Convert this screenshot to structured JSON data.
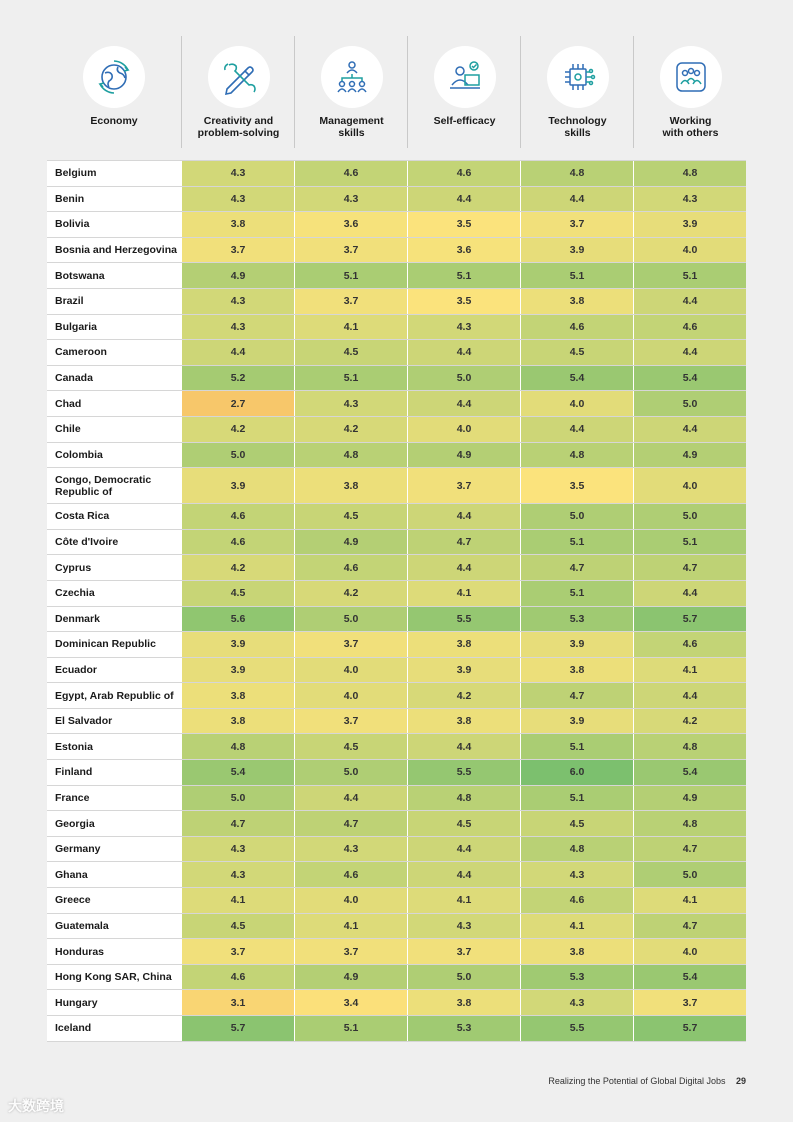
{
  "header": {
    "columns": [
      {
        "label": "Economy",
        "icon": "globe-icon"
      },
      {
        "label": "Creativity and\nproblem-solving",
        "icon": "tools-pencil-icon"
      },
      {
        "label": "Management\nskills",
        "icon": "team-hierarchy-icon"
      },
      {
        "label": "Self-efficacy",
        "icon": "person-computer-icon"
      },
      {
        "label": "Technology\nskills",
        "icon": "chip-icon"
      },
      {
        "label": "Working\nwith others",
        "icon": "group-people-icon"
      }
    ]
  },
  "colors": {
    "low": "#f7c76a",
    "mid": "#fbe37c",
    "high": "#7cc06e"
  },
  "table": {
    "rows": [
      {
        "name": "Belgium",
        "values": [
          "4.3",
          "4.6",
          "4.6",
          "4.8",
          "4.8"
        ]
      },
      {
        "name": "Benin",
        "values": [
          "4.3",
          "4.3",
          "4.4",
          "4.4",
          "4.3"
        ]
      },
      {
        "name": "Bolivia",
        "values": [
          "3.8",
          "3.6",
          "3.5",
          "3.7",
          "3.9"
        ]
      },
      {
        "name": "Bosnia and Herzegovina",
        "values": [
          "3.7",
          "3.7",
          "3.6",
          "3.9",
          "4.0"
        ]
      },
      {
        "name": "Botswana",
        "values": [
          "4.9",
          "5.1",
          "5.1",
          "5.1",
          "5.1"
        ]
      },
      {
        "name": "Brazil",
        "values": [
          "4.3",
          "3.7",
          "3.5",
          "3.8",
          "4.4"
        ]
      },
      {
        "name": "Bulgaria",
        "values": [
          "4.3",
          "4.1",
          "4.3",
          "4.6",
          "4.6"
        ]
      },
      {
        "name": "Cameroon",
        "values": [
          "4.4",
          "4.5",
          "4.4",
          "4.5",
          "4.4"
        ]
      },
      {
        "name": "Canada",
        "values": [
          "5.2",
          "5.1",
          "5.0",
          "5.4",
          "5.4"
        ]
      },
      {
        "name": "Chad",
        "values": [
          "2.7",
          "4.3",
          "4.4",
          "4.0",
          "5.0"
        ]
      },
      {
        "name": "Chile",
        "values": [
          "4.2",
          "4.2",
          "4.0",
          "4.4",
          "4.4"
        ]
      },
      {
        "name": "Colombia",
        "values": [
          "5.0",
          "4.8",
          "4.9",
          "4.8",
          "4.9"
        ]
      },
      {
        "name": "Congo, Democratic\nRepublic of",
        "values": [
          "3.9",
          "3.8",
          "3.7",
          "3.5",
          "4.0"
        ],
        "tall": true
      },
      {
        "name": "Costa Rica",
        "values": [
          "4.6",
          "4.5",
          "4.4",
          "5.0",
          "5.0"
        ]
      },
      {
        "name": "Côte d'Ivoire",
        "values": [
          "4.6",
          "4.9",
          "4.7",
          "5.1",
          "5.1"
        ]
      },
      {
        "name": "Cyprus",
        "values": [
          "4.2",
          "4.6",
          "4.4",
          "4.7",
          "4.7"
        ]
      },
      {
        "name": "Czechia",
        "values": [
          "4.5",
          "4.2",
          "4.1",
          "5.1",
          "4.4"
        ]
      },
      {
        "name": "Denmark",
        "values": [
          "5.6",
          "5.0",
          "5.5",
          "5.3",
          "5.7"
        ]
      },
      {
        "name": "Dominican Republic",
        "values": [
          "3.9",
          "3.7",
          "3.8",
          "3.9",
          "4.6"
        ]
      },
      {
        "name": "Ecuador",
        "values": [
          "3.9",
          "4.0",
          "3.9",
          "3.8",
          "4.1"
        ]
      },
      {
        "name": "Egypt, Arab Republic of",
        "values": [
          "3.8",
          "4.0",
          "4.2",
          "4.7",
          "4.4"
        ]
      },
      {
        "name": "El Salvador",
        "values": [
          "3.8",
          "3.7",
          "3.8",
          "3.9",
          "4.2"
        ]
      },
      {
        "name": "Estonia",
        "values": [
          "4.8",
          "4.5",
          "4.4",
          "5.1",
          "4.8"
        ]
      },
      {
        "name": "Finland",
        "values": [
          "5.4",
          "5.0",
          "5.5",
          "6.0",
          "5.4"
        ]
      },
      {
        "name": "France",
        "values": [
          "5.0",
          "4.4",
          "4.8",
          "5.1",
          "4.9"
        ]
      },
      {
        "name": "Georgia",
        "values": [
          "4.7",
          "4.7",
          "4.5",
          "4.5",
          "4.8"
        ]
      },
      {
        "name": "Germany",
        "values": [
          "4.3",
          "4.3",
          "4.4",
          "4.8",
          "4.7"
        ]
      },
      {
        "name": "Ghana",
        "values": [
          "4.3",
          "4.6",
          "4.4",
          "4.3",
          "5.0"
        ]
      },
      {
        "name": "Greece",
        "values": [
          "4.1",
          "4.0",
          "4.1",
          "4.6",
          "4.1"
        ]
      },
      {
        "name": "Guatemala",
        "values": [
          "4.5",
          "4.1",
          "4.3",
          "4.1",
          "4.7"
        ]
      },
      {
        "name": "Honduras",
        "values": [
          "3.7",
          "3.7",
          "3.7",
          "3.8",
          "4.0"
        ]
      },
      {
        "name": "Hong Kong SAR, China",
        "values": [
          "4.6",
          "4.9",
          "5.0",
          "5.3",
          "5.4"
        ]
      },
      {
        "name": "Hungary",
        "values": [
          "3.1",
          "3.4",
          "3.8",
          "4.3",
          "3.7"
        ]
      },
      {
        "name": "Iceland",
        "values": [
          "5.7",
          "5.1",
          "5.3",
          "5.5",
          "5.7"
        ]
      }
    ]
  },
  "footer": {
    "title": "Realizing the Potential of Global Digital Jobs",
    "page": "29"
  },
  "watermark": "大数跨境"
}
